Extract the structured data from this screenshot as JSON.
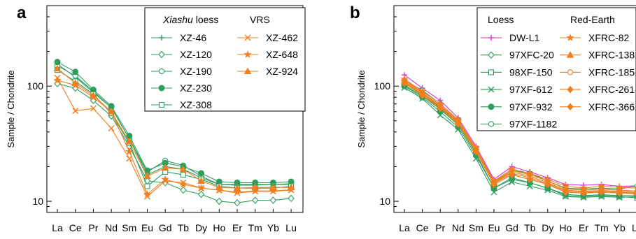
{
  "colors": {
    "loess": "#2e9e5e",
    "vrs": "#f07f1e",
    "dwl1": "#d633d6"
  },
  "chart_data": [
    {
      "panel": "a",
      "type": "line",
      "yscale": "log",
      "ylim": [
        8,
        500
      ],
      "ylabel": "Sample / Chondrite",
      "ytick_labels": [
        "10",
        "100"
      ],
      "categories": [
        "La",
        "Ce",
        "Pr",
        "Nd",
        "Sm",
        "Eu",
        "Gd",
        "Tb",
        "Dy",
        "Ho",
        "Er",
        "Tm",
        "Yb",
        "Lu"
      ],
      "legend": {
        "position": "top-right",
        "headers": [
          {
            "italic": "Xiashu",
            "rest": " loess"
          },
          {
            "italic": "",
            "rest": "VRS"
          }
        ]
      },
      "series": [
        {
          "name": "XZ-46",
          "group": "loess",
          "marker": "plus",
          "values": [
            155,
            120,
            88,
            65,
            35,
            17,
            20,
            19,
            16,
            14,
            14,
            14,
            14,
            14
          ]
        },
        {
          "name": "XZ-120",
          "group": "loess",
          "marker": "diamond-open",
          "values": [
            105,
            96,
            75,
            55,
            30,
            15,
            14.5,
            12.5,
            11.5,
            10,
            9.7,
            10.2,
            10.2,
            10.6
          ]
        },
        {
          "name": "XZ-190",
          "group": "loess",
          "marker": "circle-open",
          "values": [
            150,
            123,
            90,
            65,
            35,
            18,
            22.5,
            20.5,
            16.5,
            14,
            13.8,
            13.8,
            14,
            14.2
          ]
        },
        {
          "name": "XZ-230",
          "group": "loess",
          "marker": "circle-filled",
          "values": [
            162,
            133,
            93,
            67,
            37,
            18.5,
            21.5,
            20,
            17.5,
            14.8,
            14.5,
            14.5,
            14.5,
            14.8
          ]
        },
        {
          "name": "XZ-308",
          "group": "loess",
          "marker": "square-open",
          "values": [
            138,
            110,
            85,
            58,
            32,
            13.5,
            18,
            17,
            15.5,
            13.5,
            13,
            13,
            13,
            13.5
          ]
        },
        {
          "name": "XZ-462",
          "group": "vrs",
          "marker": "x",
          "values": [
            118,
            61,
            64,
            43,
            23.5,
            11,
            15,
            14.5,
            13,
            12.5,
            11.8,
            12.2,
            12.2,
            12.5
          ]
        },
        {
          "name": "XZ-648",
          "group": "vrs",
          "marker": "star",
          "values": [
            112,
            102,
            80,
            60,
            27,
            11.5,
            15.5,
            14,
            13,
            12.5,
            12,
            12.3,
            12.3,
            12.6
          ]
        },
        {
          "name": "XZ-924",
          "group": "vrs",
          "marker": "triangle",
          "values": [
            142,
            106,
            83,
            60,
            33,
            16.5,
            19.5,
            19,
            15,
            13.2,
            13,
            13.2,
            13.2,
            13.2
          ]
        }
      ]
    },
    {
      "panel": "b",
      "type": "line",
      "yscale": "log",
      "ylim": [
        8,
        500
      ],
      "ylabel": "Sample / Chondrite",
      "ytick_labels": [
        "10",
        "100"
      ],
      "categories": [
        "La",
        "Ce",
        "Pr",
        "Nd",
        "Sm",
        "Eu",
        "Gd",
        "Tb",
        "Dy",
        "Ho",
        "Er",
        "Tm",
        "Yb",
        "Lu"
      ],
      "legend": {
        "position": "top-right",
        "headers": [
          {
            "italic": "",
            "rest": "Loess"
          },
          {
            "italic": "",
            "rest": "Red-Earth"
          }
        ]
      },
      "series": [
        {
          "name": "DW-L1",
          "group": "dwl1",
          "marker": "plus",
          "values": [
            125,
            96,
            75,
            53,
            30,
            15.5,
            20,
            18,
            16,
            14,
            13.8,
            14,
            13.5,
            13.6
          ]
        },
        {
          "name": "97XFC-20",
          "group": "loess",
          "marker": "diamond-open",
          "values": [
            112,
            92,
            70,
            51,
            28,
            14.5,
            18.5,
            17.5,
            15,
            13,
            12.8,
            13,
            12.8,
            13.6
          ]
        },
        {
          "name": "98XF-150",
          "group": "loess",
          "marker": "square-open",
          "values": [
            102,
            82,
            63,
            46,
            26,
            13,
            16,
            14.5,
            13,
            11.2,
            11,
            11.2,
            11,
            10.7
          ]
        },
        {
          "name": "97XF-612",
          "group": "loess",
          "marker": "x",
          "values": [
            97,
            78,
            56,
            42,
            23.5,
            12,
            14.7,
            13.5,
            12.5,
            11,
            10.8,
            11,
            10.8,
            11
          ]
        },
        {
          "name": "97XF-932",
          "group": "loess",
          "marker": "circle-filled",
          "values": [
            100,
            80,
            60,
            44,
            25,
            13,
            15.5,
            14.5,
            13,
            11.5,
            11.2,
            11.4,
            11.2,
            11.2
          ]
        },
        {
          "name": "97XF-1182",
          "group": "loess",
          "marker": "circle-open",
          "values": [
            105,
            85,
            65,
            48,
            27,
            14,
            17,
            15.5,
            14,
            12,
            11.8,
            12,
            11.8,
            11.8
          ]
        },
        {
          "name": "XFRC-82",
          "group": "vrs",
          "marker": "star",
          "values": [
            115,
            90,
            70,
            51,
            29,
            15,
            19,
            17.5,
            15.5,
            13.5,
            13,
            13.5,
            13.2,
            13
          ]
        },
        {
          "name": "XFRC-138",
          "group": "vrs",
          "marker": "triangle",
          "values": [
            110,
            87,
            67,
            49,
            28,
            14.5,
            18,
            16.5,
            14.5,
            12.5,
            12.2,
            12.4,
            12.2,
            12
          ]
        },
        {
          "name": "XFRC-185",
          "group": "vrs",
          "marker": "circle-open",
          "values": [
            108,
            85,
            66,
            48,
            27.5,
            14.3,
            17.5,
            16,
            14.2,
            12.3,
            12,
            12.2,
            12,
            11.8
          ]
        },
        {
          "name": "XFRC-261",
          "group": "vrs",
          "marker": "diamond-filled",
          "values": [
            113,
            88,
            68,
            50,
            28.5,
            14.8,
            18.5,
            17,
            15,
            12.8,
            12.5,
            12.7,
            12.5,
            12.3
          ]
        },
        {
          "name": "XFRC-366",
          "group": "vrs",
          "marker": "diamond-filled",
          "values": [
            106,
            83,
            64,
            47,
            27,
            14,
            17,
            15.5,
            14,
            12,
            11.8,
            12,
            11.8,
            11.6
          ]
        }
      ]
    }
  ]
}
